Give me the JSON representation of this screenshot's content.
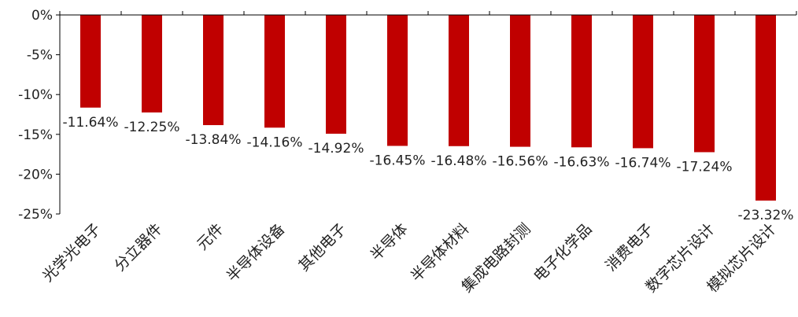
{
  "chart_data": {
    "type": "bar",
    "title": "",
    "xlabel": "",
    "ylabel": "",
    "categories": [
      "光学光电子",
      "分立器件",
      "元件",
      "半导体设备",
      "其他电子",
      "半导体",
      "半导体材料",
      "集成电路封测",
      "电子化学品",
      "消费电子",
      "数字芯片设计",
      "模拟芯片设计"
    ],
    "values": [
      -11.64,
      -12.25,
      -13.84,
      -14.16,
      -14.92,
      -16.45,
      -16.48,
      -16.56,
      -16.63,
      -16.74,
      -17.24,
      -23.32
    ],
    "data_labels": [
      "-11.64%",
      "-12.25%",
      "-13.84%",
      "-14.16%",
      "-14.92%",
      "-16.45%",
      "-16.48%",
      "-16.56%",
      "-16.63%",
      "-16.74%",
      "-17.24%",
      "-23.32%"
    ],
    "ylim": [
      -25,
      0
    ],
    "y_ticks": [
      0,
      -5,
      -10,
      -15,
      -20,
      -25
    ],
    "y_tick_labels": [
      "0%",
      "-5%",
      "-10%",
      "-15%",
      "-20%",
      "-25%"
    ],
    "grid": false,
    "legend": "none",
    "bar_color": "#C00000",
    "axis_color": "#000000"
  }
}
